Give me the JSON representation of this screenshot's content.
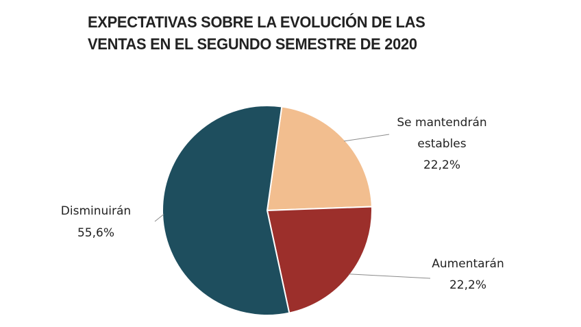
{
  "chart_data": {
    "type": "pie",
    "title_lines": [
      "EXPECTATIVAS SOBRE LA EVOLUCIÓN DE LAS",
      "VENTAS EN EL SEGUNDO SEMESTRE DE 2020"
    ],
    "slices": [
      {
        "label": "Se mantendrán estables",
        "label_lines": [
          "Se mantendrán",
          "estables"
        ],
        "value": 22.2,
        "value_label": "22,2%",
        "color": "#F2BE8F"
      },
      {
        "label": "Aumentarán",
        "label_lines": [
          "Aumentarán"
        ],
        "value": 22.2,
        "value_label": "22,2%",
        "color": "#9C2F2B"
      },
      {
        "label": "Disminuirán",
        "label_lines": [
          "Disminuirán"
        ],
        "value": 55.6,
        "value_label": "55,6%",
        "color": "#1E4E5E"
      }
    ],
    "start_angle_deg": 8,
    "direction": "clockwise",
    "legend": "none"
  }
}
